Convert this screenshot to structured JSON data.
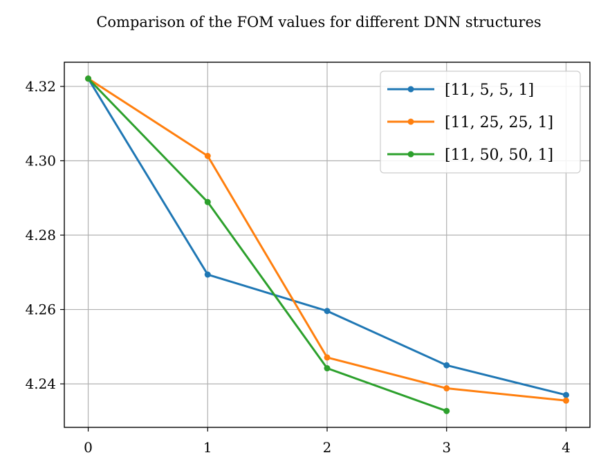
{
  "chart_data": {
    "type": "line",
    "title": "Comparison of the FOM values for different DNN structures",
    "xlabel": "",
    "ylabel": "",
    "x": [
      0,
      1,
      2,
      3,
      4
    ],
    "xlim": [
      -0.2,
      4.2
    ],
    "ylim": [
      4.2283,
      4.3265
    ],
    "xticks": [
      0,
      1,
      2,
      3,
      4
    ],
    "yticks": [
      4.24,
      4.26,
      4.28,
      4.3,
      4.32
    ],
    "ytick_labels": [
      "4.24",
      "4.26",
      "4.28",
      "4.30",
      "4.32"
    ],
    "grid": true,
    "legend_position": "top-right",
    "series": [
      {
        "name": "[11, 5, 5, 1]",
        "color": "#1f77b4",
        "x": [
          0,
          1,
          2,
          3,
          4
        ],
        "values": [
          4.3221,
          4.2694,
          4.2596,
          4.245,
          4.237
        ]
      },
      {
        "name": "[11, 25, 25, 1]",
        "color": "#ff7f0e",
        "x": [
          0,
          1,
          2,
          3,
          4
        ],
        "values": [
          4.3221,
          4.3013,
          4.2471,
          4.2388,
          4.2355
        ]
      },
      {
        "name": "[11, 50, 50, 1]",
        "color": "#2ca02c",
        "x": [
          0,
          1,
          2,
          3
        ],
        "values": [
          4.3221,
          4.2889,
          4.2442,
          4.2327
        ]
      }
    ]
  }
}
